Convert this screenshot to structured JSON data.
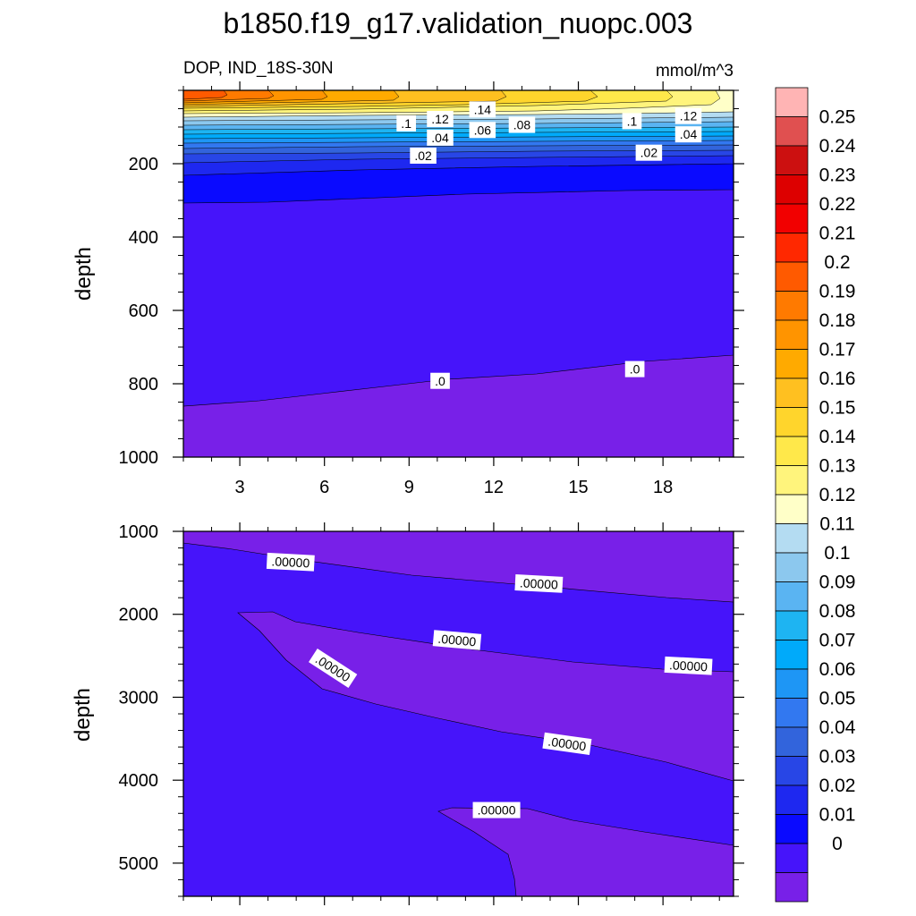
{
  "title": "b1850.f19_g17.validation_nuopc.003",
  "chart_data": [
    {
      "type": "heatmap",
      "subtype": "filled-contour",
      "panel": "upper",
      "left_label": "DOP, IND_18S-30N",
      "right_label": "mmol/m^3",
      "xlabel": "",
      "ylabel": "depth",
      "xlim": [
        1.0,
        20.5
      ],
      "ylim": [
        1000,
        0
      ],
      "xticks": [
        3,
        6,
        9,
        12,
        15,
        18
      ],
      "yticks": [
        200,
        400,
        600,
        800,
        1000
      ],
      "contour_labels": [
        {
          "text": ".14",
          "x": 11.6,
          "depth": 52
        },
        {
          "text": ".12",
          "x": 10.1,
          "depth": 78
        },
        {
          "text": ".12",
          "x": 18.9,
          "depth": 70
        },
        {
          "text": ".1",
          "x": 8.9,
          "depth": 90
        },
        {
          "text": ".1",
          "x": 16.9,
          "depth": 84
        },
        {
          "text": ".08",
          "x": 13.0,
          "depth": 94
        },
        {
          "text": ".06",
          "x": 11.6,
          "depth": 108
        },
        {
          "text": ".04",
          "x": 10.1,
          "depth": 129
        },
        {
          "text": ".04",
          "x": 18.9,
          "depth": 120
        },
        {
          "text": ".02",
          "x": 9.5,
          "depth": 178
        },
        {
          "text": ".02",
          "x": 17.5,
          "depth": 170
        },
        {
          "text": ".0",
          "x": 10.1,
          "depth": 792
        },
        {
          "text": ".0",
          "x": 17.0,
          "depth": 760
        }
      ]
    },
    {
      "type": "heatmap",
      "subtype": "filled-contour",
      "panel": "lower",
      "xlabel": "",
      "ylabel": "depth",
      "xlim": [
        1.0,
        20.5
      ],
      "ylim": [
        5400,
        1000
      ],
      "yticks": [
        1000,
        2000,
        3000,
        4000,
        5000
      ],
      "contour_labels": [
        {
          "text": ".00000",
          "x": 4.8,
          "depth": 1370,
          "angle": 3
        },
        {
          "text": ".00000",
          "x": 13.6,
          "depth": 1630,
          "angle": 3
        },
        {
          "text": ".00000",
          "x": 10.7,
          "depth": 2310,
          "angle": 5
        },
        {
          "text": ".00000",
          "x": 6.3,
          "depth": 2650,
          "angle": 33
        },
        {
          "text": ".00000",
          "x": 18.9,
          "depth": 2620,
          "angle": 3
        },
        {
          "text": ".00000",
          "x": 14.6,
          "depth": 3560,
          "angle": 8
        },
        {
          "text": ".00000",
          "x": 12.1,
          "depth": 4360,
          "angle": 0
        }
      ]
    }
  ],
  "colorbar": {
    "labels": [
      "0.25",
      "0.24",
      "0.23",
      "0.22",
      "0.21",
      "0.2",
      "0.19",
      "0.18",
      "0.17",
      "0.16",
      "0.15",
      "0.14",
      "0.13",
      "0.12",
      "0.11",
      "0.1",
      "0.09",
      "0.08",
      "0.07",
      "0.06",
      "0.05",
      "0.04",
      "0.03",
      "0.02",
      "0.01",
      "0"
    ],
    "colors": [
      "#FFB4B4",
      "#E05050",
      "#CC1010",
      "#DD0000",
      "#F20000",
      "#FF2800",
      "#FF5A00",
      "#FF7A00",
      "#FF9400",
      "#FFAA00",
      "#FFC020",
      "#FFD52C",
      "#FFE84A",
      "#FFF47C",
      "#FFFFC8",
      "#B4DCF2",
      "#8CC8EE",
      "#5AB4F2",
      "#1EB4F2",
      "#00AAFA",
      "#1E96F5",
      "#3278F0",
      "#3264DC",
      "#2846E6",
      "#1E28F0",
      "#0A0AFF",
      "#4614FA",
      "#7820E8"
    ]
  }
}
